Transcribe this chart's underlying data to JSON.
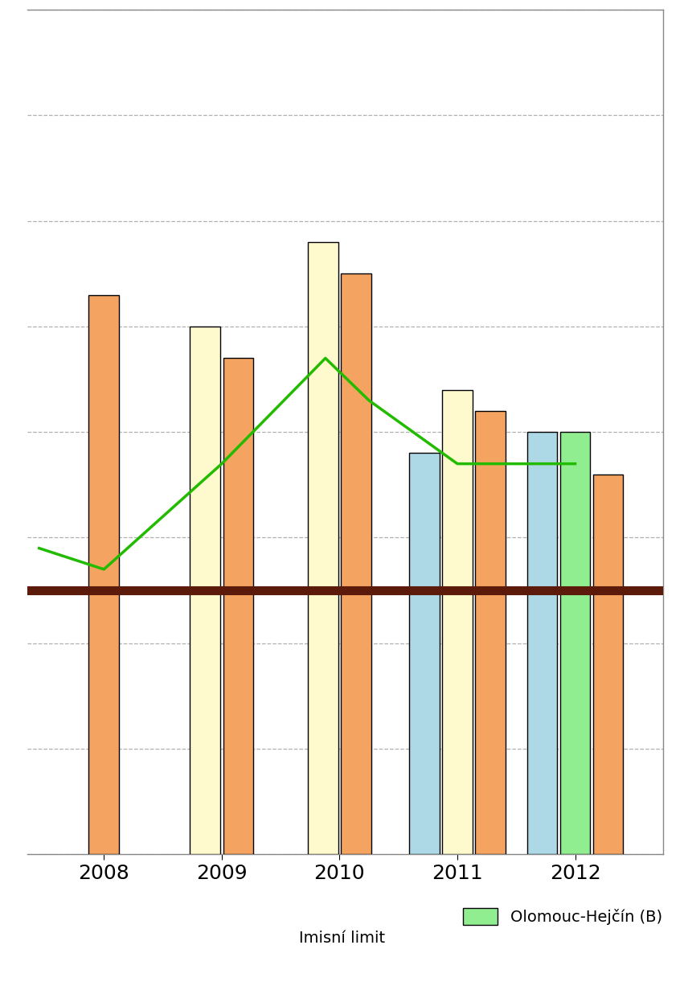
{
  "years_labels": [
    "2008",
    "2009",
    "2010",
    "2011",
    "2012"
  ],
  "groups": [
    {
      "bars": [
        {
          "val": 53,
          "color": "#F4A460",
          "edge": "#000000"
        }
      ]
    },
    {
      "bars": [
        {
          "val": 50,
          "color": "#FFFACD",
          "edge": "#000000"
        },
        {
          "val": 47,
          "color": "#F4A460",
          "edge": "#000000"
        }
      ]
    },
    {
      "bars": [
        {
          "val": 58,
          "color": "#FFFACD",
          "edge": "#000000"
        },
        {
          "val": 55,
          "color": "#F4A460",
          "edge": "#000000"
        }
      ]
    },
    {
      "bars": [
        {
          "val": 38,
          "color": "#ADD8E6",
          "edge": "#000000"
        },
        {
          "val": 44,
          "color": "#FFFACD",
          "edge": "#000000"
        },
        {
          "val": 42,
          "color": "#F4A460",
          "edge": "#000000"
        }
      ]
    },
    {
      "bars": [
        {
          "val": 40,
          "color": "#ADD8E6",
          "edge": "#000000"
        },
        {
          "val": 40,
          "color": "#90EE90",
          "edge": "#000000"
        },
        {
          "val": 36,
          "color": "#F4A460",
          "edge": "#000000"
        }
      ]
    }
  ],
  "line_x": [
    -0.55,
    0.0,
    1.0,
    1.88,
    2.25,
    3.0,
    4.0
  ],
  "line_y": [
    29,
    27,
    37,
    47,
    43,
    37,
    37
  ],
  "line_color": "#22BB00",
  "line_width": 2.5,
  "limit_y": 25,
  "limit_color": "#5C1A0A",
  "limit_linewidth": 8,
  "ylim": [
    0,
    80
  ],
  "yticks": [
    0,
    10,
    20,
    30,
    40,
    50,
    60,
    70,
    80
  ],
  "xlim": [
    -0.65,
    4.75
  ],
  "bar_width": 0.28,
  "grid_color": "#B0B0B0",
  "grid_linestyle": "--",
  "background_color": "#FFFFFF",
  "legend_label": "Olomouc-Hejčín (B)",
  "legend_color": "#90EE90",
  "legend_edge": "#000000",
  "imisni_limit": "Imisní limit",
  "tick_fontsize": 18,
  "legend_fontsize": 14,
  "imisni_fontsize": 14,
  "top_border_color": "#888888",
  "right_border_color": "#888888"
}
